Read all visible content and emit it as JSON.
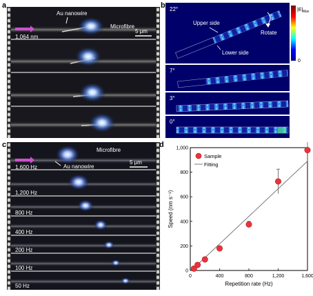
{
  "figure": {
    "panel_labels": [
      "a",
      "b",
      "c",
      "d"
    ]
  },
  "panel_a": {
    "wavelength_label": "1,064 nm",
    "nanowire_label": "Au nanowire",
    "fibre_label": "Microfibre",
    "scale_label": "5 μm",
    "frame_count": 4
  },
  "panel_b": {
    "colorbar_label": "|E|",
    "colorbar_sub": "Max",
    "colorbar_min": "0",
    "upper_side_label": "Upper side",
    "lower_side_label": "Lower side",
    "rotate_label": "Rotate",
    "angles": [
      "22°",
      "7°",
      "3°",
      "0°"
    ]
  },
  "panel_c": {
    "fibre_label": "Microfibre",
    "nanowire_label": "Au nanowire",
    "scale_label": "5 μm",
    "frequencies": [
      "1,600 Hz",
      "1,200 Hz",
      "800 Hz",
      "400 Hz",
      "200 Hz",
      "100 Hz",
      "50 Hz"
    ]
  },
  "chart_data": {
    "type": "scatter",
    "xlabel": "Repetition rate (Hz)",
    "ylabel": "Speed (nm s⁻¹)",
    "xlim": [
      0,
      1600
    ],
    "ylim": [
      0,
      1000
    ],
    "x_ticks": [
      "0",
      "400",
      "800",
      "1,200",
      "1,600"
    ],
    "y_ticks": [
      "0",
      "200",
      "400",
      "600",
      "800",
      "1,000"
    ],
    "legend": {
      "position": "top-left",
      "entries": [
        "Sample",
        "Fitting"
      ]
    },
    "series": [
      {
        "name": "Sample",
        "x": [
          50,
          100,
          200,
          400,
          800,
          1200,
          1600
        ],
        "y": [
          15,
          45,
          90,
          180,
          375,
          725,
          980
        ],
        "yerr": [
          20,
          15,
          15,
          15,
          25,
          100,
          95
        ]
      },
      {
        "name": "Fitting",
        "x": [
          50,
          1600
        ],
        "y": [
          20,
          890
        ]
      }
    ],
    "colors": {
      "sample": "#e8343c",
      "fit": "#7a7a7a"
    }
  }
}
